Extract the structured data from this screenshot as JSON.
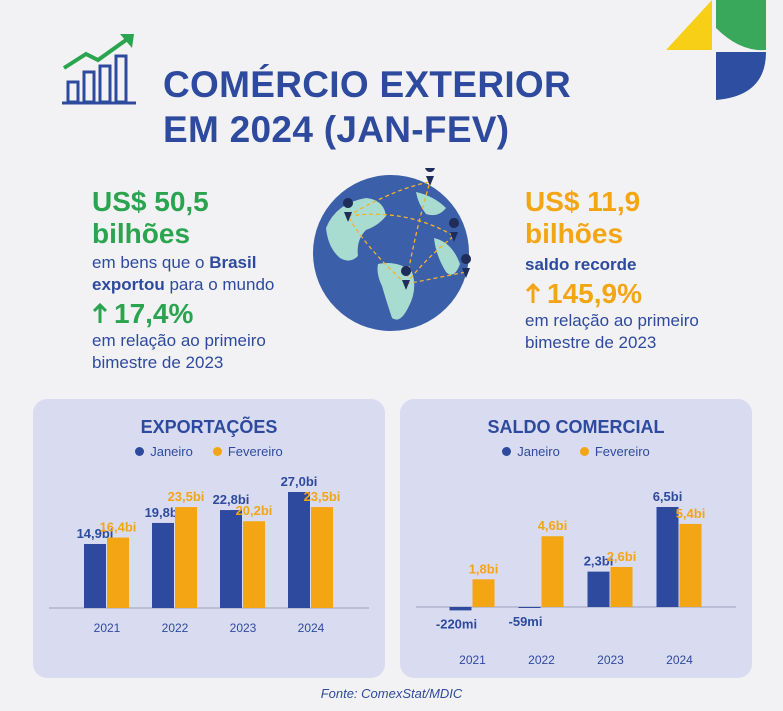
{
  "header": {
    "title_line1": "COMÉRCIO EXTERIOR",
    "title_line2": "EM 2024 (JAN-FEV)"
  },
  "colors": {
    "blue": "#2e4a9e",
    "orange": "#f3a514",
    "green": "#2aa44f",
    "panel": "#d9dcf0"
  },
  "left_stat": {
    "amount": "US$ 50,5",
    "unit": "bilhões",
    "desc_part1": "em bens que o ",
    "desc_bold": "Brasil exportou",
    "desc_part2": " para o mundo",
    "growth": "17,4%",
    "note": "em relação ao primeiro bimestre de 2023"
  },
  "right_stat": {
    "amount": "US$ 11,9",
    "unit": "bilhões",
    "desc_bold": "saldo recorde",
    "growth": "145,9%",
    "note": "em relação ao primeiro bimestre de 2023"
  },
  "source": "Fonte: ComexStat/MDIC",
  "chart_data": [
    {
      "type": "bar",
      "title": "EXPORTAÇÕES",
      "categories": [
        "2021",
        "2022",
        "2023",
        "2024"
      ],
      "series": [
        {
          "name": "Janeiro",
          "values": [
            14.9,
            19.8,
            22.8,
            27.0
          ],
          "labels": [
            "14,9bi",
            "19,8bi",
            "22,8bi",
            "27,0bi"
          ],
          "color": "#2e4a9e"
        },
        {
          "name": "Fevereiro",
          "values": [
            16.4,
            23.5,
            20.2,
            23.5
          ],
          "labels": [
            "16,4bi",
            "23,5bi",
            "20,2bi",
            "23,5bi"
          ],
          "color": "#f3a514"
        }
      ],
      "ylim": [
        0,
        27.0
      ],
      "legend": "top-center",
      "grid": false
    },
    {
      "type": "bar",
      "title": "SALDO COMERCIAL",
      "categories": [
        "2021",
        "2022",
        "2023",
        "2024"
      ],
      "series": [
        {
          "name": "Janeiro",
          "values": [
            -0.22,
            -0.059,
            2.3,
            6.5
          ],
          "labels": [
            "-220mi",
            "-59mi",
            "2,3bi",
            "6,5bi"
          ],
          "color": "#2e4a9e"
        },
        {
          "name": "Fevereiro",
          "values": [
            1.8,
            4.6,
            2.6,
            5.4
          ],
          "labels": [
            "1,8bi",
            "4,6bi",
            "2,6bi",
            "5,4bi"
          ],
          "color": "#f3a514"
        }
      ],
      "ylim": [
        -0.5,
        6.5
      ],
      "legend": "top-center",
      "grid": false
    }
  ]
}
